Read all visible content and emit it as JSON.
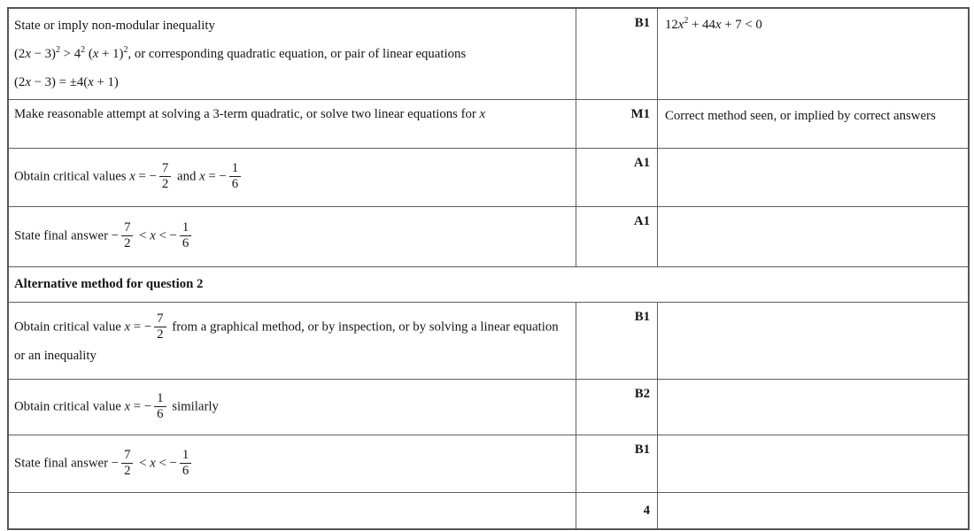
{
  "colors": {
    "background": "#ffffff",
    "border": "#5e5e5e",
    "text": "#151515"
  },
  "rows": [
    {
      "kind": "mark-row",
      "answer": [
        {
          "t": "txt",
          "v": "State or imply non-modular inequality"
        },
        {
          "t": "br"
        },
        {
          "t": "txt",
          "v": "(2"
        },
        {
          "t": "var",
          "v": "x"
        },
        {
          "t": "txt",
          "v": " − 3)"
        },
        {
          "t": "sup",
          "v": "2"
        },
        {
          "t": "txt",
          "v": " > 4"
        },
        {
          "t": "sup",
          "v": "2"
        },
        {
          "t": "txt",
          "v": " ("
        },
        {
          "t": "var",
          "v": "x"
        },
        {
          "t": "txt",
          "v": " + 1)"
        },
        {
          "t": "sup",
          "v": "2"
        },
        {
          "t": "txt",
          "v": ", or corresponding quadratic equation, or pair of linear equations"
        },
        {
          "t": "br"
        },
        {
          "t": "txt",
          "v": "(2"
        },
        {
          "t": "var",
          "v": "x"
        },
        {
          "t": "txt",
          "v": " − 3) = ±4("
        },
        {
          "t": "var",
          "v": "x"
        },
        {
          "t": "txt",
          "v": " + 1)"
        }
      ],
      "mark": "B1",
      "guidance": [
        {
          "t": "txt",
          "v": "12"
        },
        {
          "t": "var",
          "v": "x"
        },
        {
          "t": "sup",
          "v": "2"
        },
        {
          "t": "txt",
          "v": " + 44"
        },
        {
          "t": "var",
          "v": "x"
        },
        {
          "t": "txt",
          "v": " + 7 < 0"
        }
      ]
    },
    {
      "kind": "mark-row",
      "answer": [
        {
          "t": "txt",
          "v": "Make reasonable attempt at solving a 3-term quadratic, or solve two linear equations for "
        },
        {
          "t": "var",
          "v": "x"
        }
      ],
      "mark": "M1",
      "guidance": [
        {
          "t": "txt",
          "v": "Correct method seen, or implied by correct answers"
        }
      ]
    },
    {
      "kind": "mark-row",
      "answer": [
        {
          "t": "txt",
          "v": "Obtain critical values "
        },
        {
          "t": "var",
          "v": "x"
        },
        {
          "t": "txt",
          "v": " = −"
        },
        {
          "t": "frac",
          "n": "7",
          "d": "2"
        },
        {
          "t": "txt",
          "v": " and "
        },
        {
          "t": "var",
          "v": "x"
        },
        {
          "t": "txt",
          "v": " = −"
        },
        {
          "t": "frac",
          "n": "1",
          "d": "6"
        }
      ],
      "mark": "A1",
      "guidance": []
    },
    {
      "kind": "mark-row",
      "answer": [
        {
          "t": "txt",
          "v": "State final answer −"
        },
        {
          "t": "frac",
          "n": "7",
          "d": "2"
        },
        {
          "t": "txt",
          "v": " < "
        },
        {
          "t": "var",
          "v": "x"
        },
        {
          "t": "txt",
          "v": " < −"
        },
        {
          "t": "frac",
          "n": "1",
          "d": "6"
        }
      ],
      "mark": "A1",
      "guidance": []
    },
    {
      "kind": "section",
      "title": "Alternative method for question 2"
    },
    {
      "kind": "mark-row",
      "answer": [
        {
          "t": "txt",
          "v": "Obtain critical value "
        },
        {
          "t": "var",
          "v": "x"
        },
        {
          "t": "txt",
          "v": " = −"
        },
        {
          "t": "frac",
          "n": "7",
          "d": "2"
        },
        {
          "t": "txt",
          "v": " from a graphical method, or by inspection, or by solving a linear equation or an inequality"
        }
      ],
      "mark": "B1",
      "guidance": []
    },
    {
      "kind": "mark-row",
      "answer": [
        {
          "t": "txt",
          "v": "Obtain critical value "
        },
        {
          "t": "var",
          "v": "x"
        },
        {
          "t": "txt",
          "v": " = −"
        },
        {
          "t": "frac",
          "n": "1",
          "d": "6"
        },
        {
          "t": "txt",
          "v": " similarly"
        }
      ],
      "mark": "B2",
      "guidance": []
    },
    {
      "kind": "mark-row",
      "answer": [
        {
          "t": "txt",
          "v": "State final answer −"
        },
        {
          "t": "frac",
          "n": "7",
          "d": "2"
        },
        {
          "t": "txt",
          "v": " < "
        },
        {
          "t": "var",
          "v": "x"
        },
        {
          "t": "txt",
          "v": " < −"
        },
        {
          "t": "frac",
          "n": "1",
          "d": "6"
        }
      ],
      "mark": "B1",
      "guidance": []
    },
    {
      "kind": "total",
      "mark": "4"
    }
  ]
}
